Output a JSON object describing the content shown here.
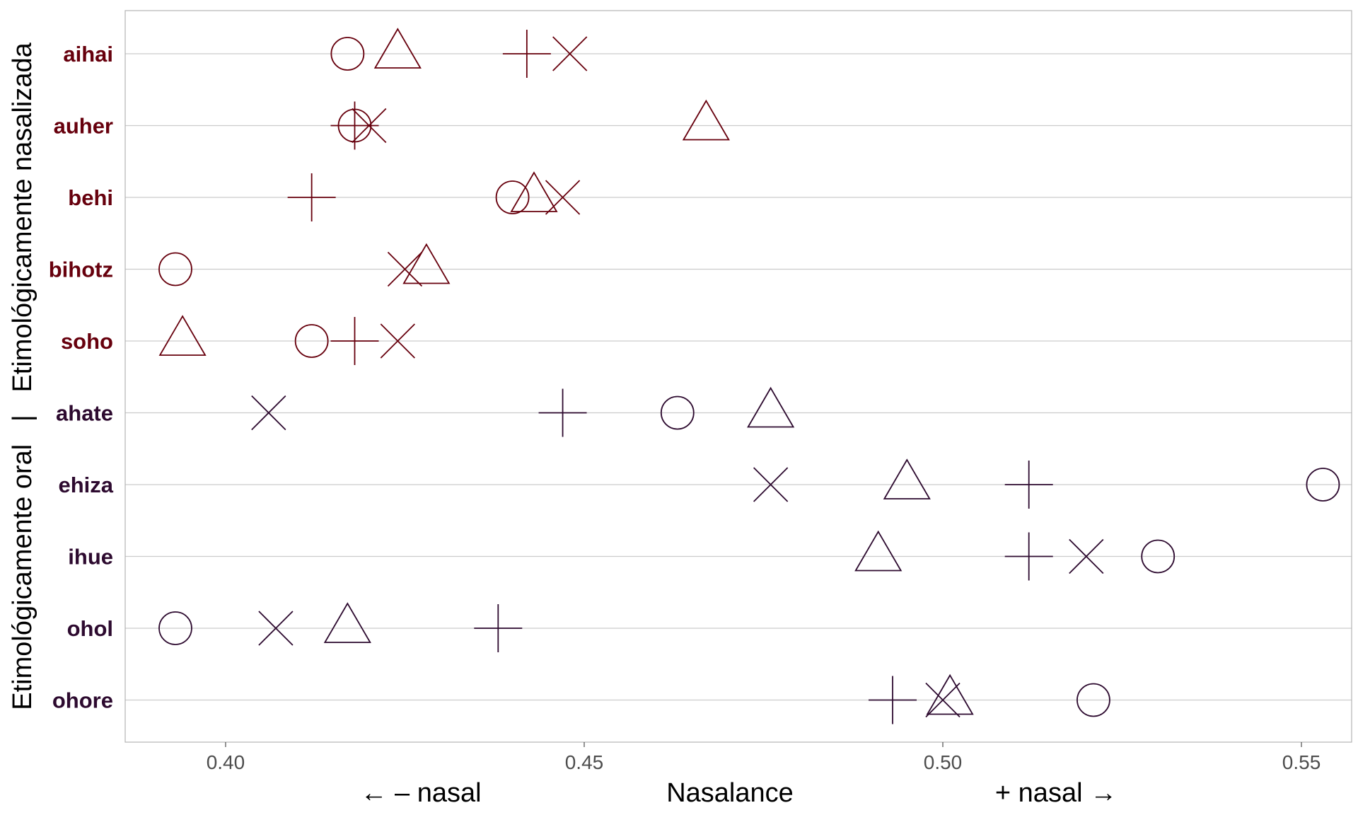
{
  "chart_data": {
    "type": "scatter",
    "title": "",
    "xlabel": "Nasalance",
    "xlabel_left": "← – nasal",
    "xlabel_right": "+ nasal →",
    "ylabel": "Etimológicamente oral   |   Etimológicamente nasalizada",
    "xlim": [
      0.386,
      0.557
    ],
    "x_ticks": [
      0.4,
      0.45,
      0.5,
      0.55
    ],
    "x_tick_labels": [
      "0.40",
      "0.45",
      "0.50",
      "0.55"
    ],
    "grid": "horizontal",
    "legend": "none",
    "colors": {
      "oral": "#67000d",
      "nasalized": "#2d0a2f",
      "gridline": "#cccccc",
      "panel_border": "#b3b3b3"
    },
    "marker_shapes": [
      "circle",
      "triangle",
      "plus",
      "cross"
    ],
    "categories": [
      {
        "word": "aihai",
        "group": "oral",
        "circle": 0.417,
        "triangle": 0.424,
        "plus": 0.442,
        "cross": 0.448
      },
      {
        "word": "auher",
        "group": "oral",
        "circle": 0.418,
        "triangle": 0.467,
        "plus": 0.418,
        "cross": 0.42
      },
      {
        "word": "behi",
        "group": "oral",
        "circle": 0.44,
        "triangle": 0.443,
        "plus": 0.412,
        "cross": 0.447
      },
      {
        "word": "bihotz",
        "group": "oral",
        "circle": 0.393,
        "triangle": 0.428,
        "plus": null,
        "cross": 0.425
      },
      {
        "word": "soho",
        "group": "oral",
        "circle": 0.412,
        "triangle": 0.394,
        "plus": 0.418,
        "cross": 0.424
      },
      {
        "word": "ahate",
        "group": "nasalized",
        "circle": 0.463,
        "triangle": 0.476,
        "plus": 0.447,
        "cross": 0.406
      },
      {
        "word": "ehiza",
        "group": "nasalized",
        "circle": 0.553,
        "triangle": 0.495,
        "plus": 0.512,
        "cross": 0.476
      },
      {
        "word": "ihue",
        "group": "nasalized",
        "circle": 0.53,
        "triangle": 0.491,
        "plus": 0.512,
        "cross": 0.52
      },
      {
        "word": "ohol",
        "group": "nasalized",
        "circle": 0.393,
        "triangle": 0.417,
        "plus": 0.438,
        "cross": 0.407
      },
      {
        "word": "ohore",
        "group": "nasalized",
        "circle": 0.521,
        "triangle": 0.501,
        "plus": 0.493,
        "cross": 0.5
      }
    ]
  }
}
